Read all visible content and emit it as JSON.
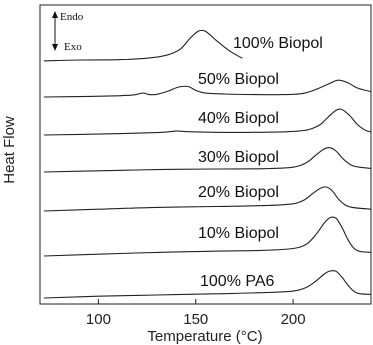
{
  "chart_data": {
    "type": "line",
    "xlabel": "Temperature (°C)",
    "ylabel": "Heat Flow",
    "xlim": [
      70,
      240
    ],
    "x_ticks": [
      100,
      150,
      200
    ],
    "direction_legend": {
      "up": "Endo",
      "down": "Exo"
    },
    "series": [
      {
        "name": "100% Biopol",
        "points": [
          [
            72,
            -0.3
          ],
          [
            90,
            0
          ],
          [
            110,
            0.1
          ],
          [
            125,
            0.6
          ],
          [
            135,
            1.6
          ],
          [
            142,
            3.6
          ],
          [
            147,
            7.2
          ],
          [
            151,
            9.5
          ],
          [
            154,
            9.8
          ],
          [
            157,
            8.6
          ],
          [
            160,
            6.8
          ],
          [
            163,
            5.2
          ],
          [
            167,
            3.2
          ],
          [
            171,
            1.6
          ],
          [
            174,
            0.6
          ]
        ]
      },
      {
        "name": "50% Biopol",
        "points": [
          [
            72,
            0
          ],
          [
            95,
            0.2
          ],
          [
            110,
            0.4
          ],
          [
            118,
            0.7
          ],
          [
            123,
            1.3
          ],
          [
            126,
            0.8
          ],
          [
            130,
            0.9
          ],
          [
            136,
            2.0
          ],
          [
            141,
            3.3
          ],
          [
            146,
            3.5
          ],
          [
            150,
            2.2
          ],
          [
            155,
            1.3
          ],
          [
            165,
            1.0
          ],
          [
            180,
            0.8
          ],
          [
            195,
            0.8
          ],
          [
            205,
            1.2
          ],
          [
            212,
            2.6
          ],
          [
            218,
            4.3
          ],
          [
            223,
            5.6
          ],
          [
            228,
            4.8
          ],
          [
            233,
            3.0
          ],
          [
            240,
            1.8
          ]
        ]
      },
      {
        "name": "40% Biopol",
        "points": [
          [
            72,
            0
          ],
          [
            100,
            0.3
          ],
          [
            130,
            0.8
          ],
          [
            140,
            1.3
          ],
          [
            146,
            1.1
          ],
          [
            160,
            0.9
          ],
          [
            180,
            0.9
          ],
          [
            200,
            1.2
          ],
          [
            208,
            1.8
          ],
          [
            214,
            3.5
          ],
          [
            218,
            6.0
          ],
          [
            222,
            8.2
          ],
          [
            225,
            8.5
          ],
          [
            229,
            6.5
          ],
          [
            233,
            3.5
          ],
          [
            237,
            1.6
          ],
          [
            240,
            1.0
          ]
        ]
      },
      {
        "name": "30% Biopol",
        "points": [
          [
            72,
            0
          ],
          [
            100,
            0.4
          ],
          [
            130,
            0.8
          ],
          [
            160,
            1.0
          ],
          [
            185,
            1.1
          ],
          [
            200,
            1.6
          ],
          [
            207,
            3.2
          ],
          [
            212,
            5.8
          ],
          [
            216,
            7.7
          ],
          [
            219,
            8.1
          ],
          [
            222,
            7.0
          ],
          [
            226,
            4.2
          ],
          [
            231,
            2.0
          ],
          [
            240,
            1.2
          ]
        ]
      },
      {
        "name": "20% Biopol",
        "points": [
          [
            72,
            0
          ],
          [
            100,
            0.6
          ],
          [
            130,
            1.2
          ],
          [
            160,
            1.5
          ],
          [
            185,
            1.8
          ],
          [
            200,
            2.4
          ],
          [
            206,
            3.8
          ],
          [
            210,
            5.8
          ],
          [
            214,
            7.6
          ],
          [
            217,
            8.0
          ],
          [
            220,
            6.8
          ],
          [
            224,
            3.5
          ],
          [
            229,
            1.4
          ],
          [
            240,
            0.6
          ]
        ]
      },
      {
        "name": "10% Biopol",
        "points": [
          [
            72,
            0
          ],
          [
            100,
            0.6
          ],
          [
            130,
            1.2
          ],
          [
            160,
            1.6
          ],
          [
            185,
            1.9
          ],
          [
            200,
            2.5
          ],
          [
            207,
            4.0
          ],
          [
            212,
            7.4
          ],
          [
            216,
            11.0
          ],
          [
            219,
            12.8
          ],
          [
            222,
            12.6
          ],
          [
            225,
            9.6
          ],
          [
            229,
            4.5
          ],
          [
            233,
            1.8
          ],
          [
            240,
            1.2
          ]
        ]
      },
      {
        "name": "100% PA6",
        "points": [
          [
            72,
            0
          ],
          [
            100,
            0.6
          ],
          [
            130,
            1.0
          ],
          [
            160,
            1.4
          ],
          [
            185,
            1.8
          ],
          [
            200,
            2.3
          ],
          [
            207,
            3.6
          ],
          [
            212,
            5.8
          ],
          [
            216,
            8.0
          ],
          [
            219,
            9.0
          ],
          [
            222,
            8.9
          ],
          [
            225,
            7.0
          ],
          [
            229,
            3.6
          ],
          [
            233,
            1.6
          ],
          [
            240,
            1.2
          ]
        ]
      }
    ]
  }
}
